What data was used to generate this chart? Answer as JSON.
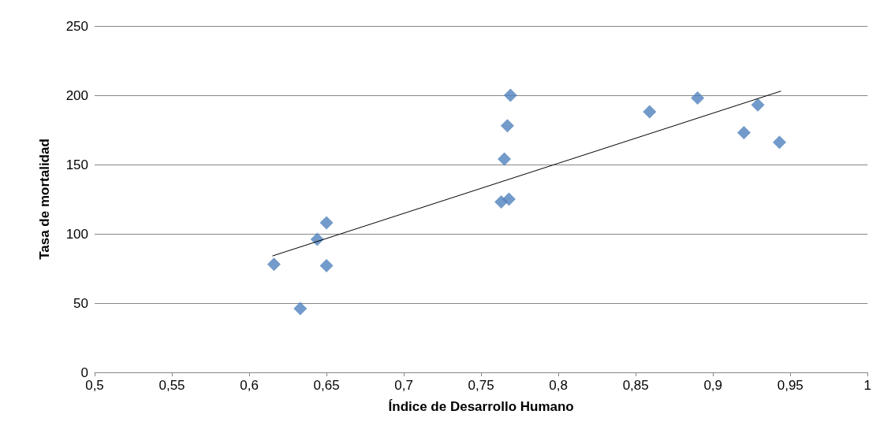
{
  "chart_data": {
    "type": "scatter",
    "xlabel": "Índice de Desarrollo Humano",
    "ylabel": "Tasa de mortalidad",
    "xlim": [
      0.5,
      1
    ],
    "xticks": [
      {
        "value": 0.5,
        "label": "0,5"
      },
      {
        "value": 0.55,
        "label": "0,55"
      },
      {
        "value": 0.6,
        "label": "0,6"
      },
      {
        "value": 0.65,
        "label": "0,65"
      },
      {
        "value": 0.7,
        "label": "0,7"
      },
      {
        "value": 0.75,
        "label": "0,75"
      },
      {
        "value": 0.8,
        "label": "0,8"
      },
      {
        "value": 0.85,
        "label": "0,85"
      },
      {
        "value": 0.9,
        "label": "0,9"
      },
      {
        "value": 0.95,
        "label": "0,95"
      },
      {
        "value": 1,
        "label": "1"
      }
    ],
    "ylim": [
      0,
      250
    ],
    "yticks": [
      0,
      50,
      100,
      150,
      200,
      250
    ],
    "grid": "y",
    "marker": "diamond",
    "series": [
      {
        "color": "#4f81bd",
        "x": [
          0.616,
          0.633,
          0.644,
          0.65,
          0.65,
          0.763,
          0.768,
          0.765,
          0.767,
          0.769,
          0.859,
          0.89,
          0.92,
          0.929,
          0.943
        ],
        "values": [
          78,
          46,
          96,
          108,
          77,
          123,
          125,
          154,
          178,
          200,
          188,
          198,
          173,
          193,
          166
        ]
      },
      {
        "type": "line",
        "color": "#000000",
        "marker": "none",
        "x": [
          0.615,
          0.944
        ],
        "values": [
          84,
          203
        ]
      }
    ]
  }
}
